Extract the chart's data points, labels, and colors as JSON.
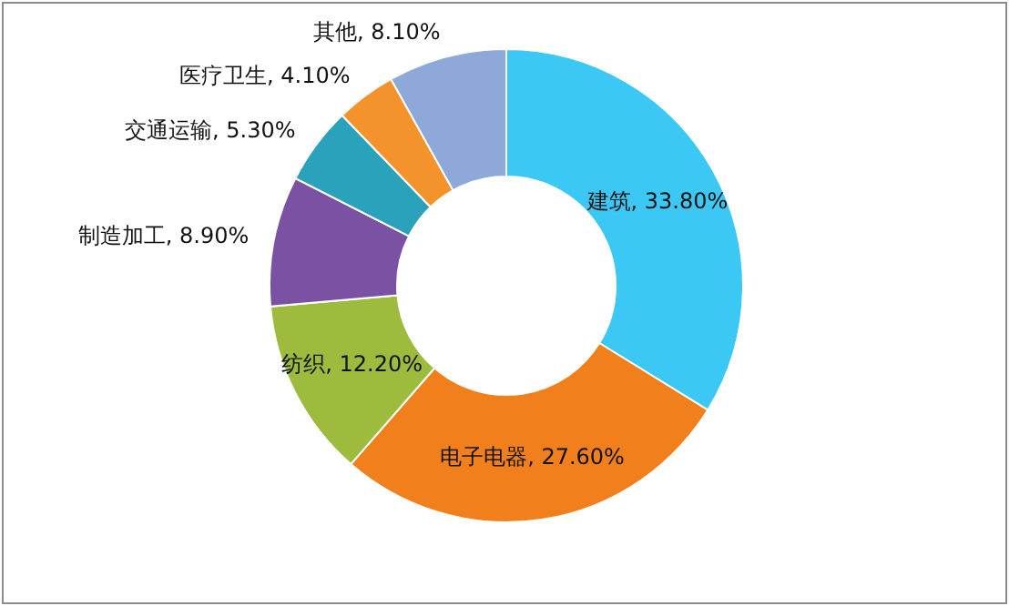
{
  "chart_data": {
    "type": "donut",
    "categories": [
      "建筑",
      "电子电器",
      "纺织",
      "制造加工",
      "交通运输",
      "医疗卫生",
      "其他"
    ],
    "values": [
      33.8,
      27.6,
      12.2,
      8.9,
      5.3,
      4.1,
      8.1
    ],
    "value_labels": [
      "33.80%",
      "27.60%",
      "12.20%",
      "8.90%",
      "5.30%",
      "4.10%",
      "8.10%"
    ],
    "colors": [
      "#3cc8f4",
      "#f07f1c",
      "#9dbb3c",
      "#7b52a3",
      "#2ba2bb",
      "#f4922c",
      "#8ea9d9"
    ],
    "legend": false
  }
}
